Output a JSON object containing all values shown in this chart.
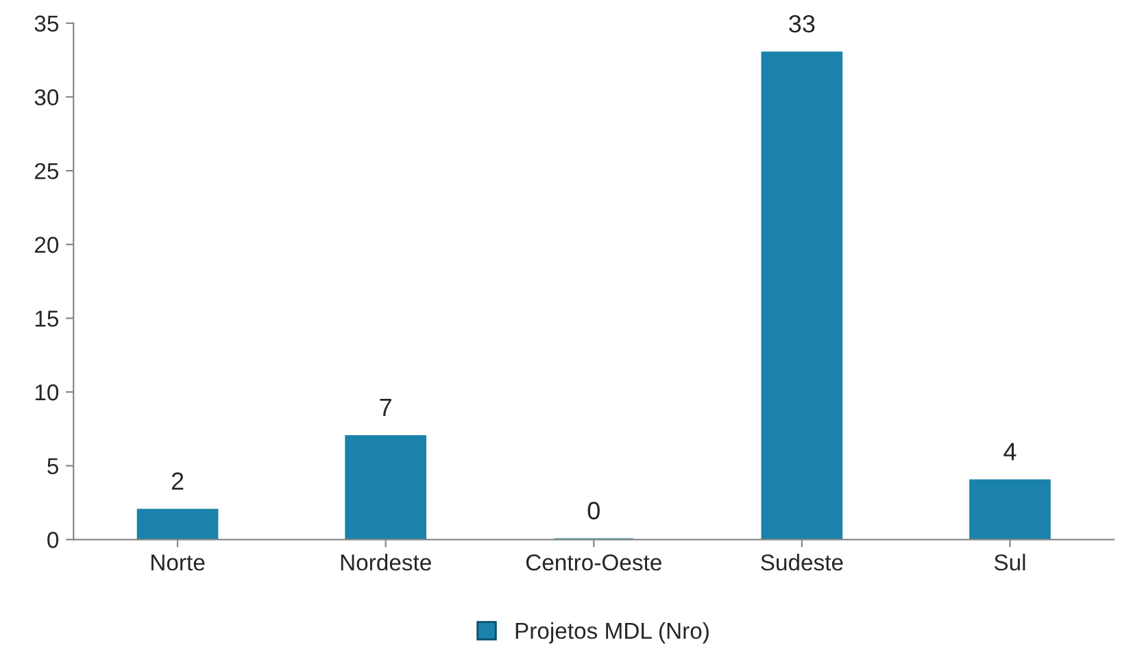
{
  "chart_data": {
    "type": "bar",
    "categories": [
      "Norte",
      "Nordeste",
      "Centro-Oeste",
      "Sudeste",
      "Sul"
    ],
    "series": [
      {
        "name": "Projetos MDL (Nro)",
        "color": "#1a82ab",
        "values": [
          2,
          7,
          0,
          33,
          4
        ]
      }
    ],
    "ylim": [
      0,
      35
    ],
    "yticks": [
      0,
      5,
      10,
      15,
      20,
      25,
      30,
      35
    ],
    "data_labels": true,
    "legend": "bottom",
    "grid": false
  }
}
